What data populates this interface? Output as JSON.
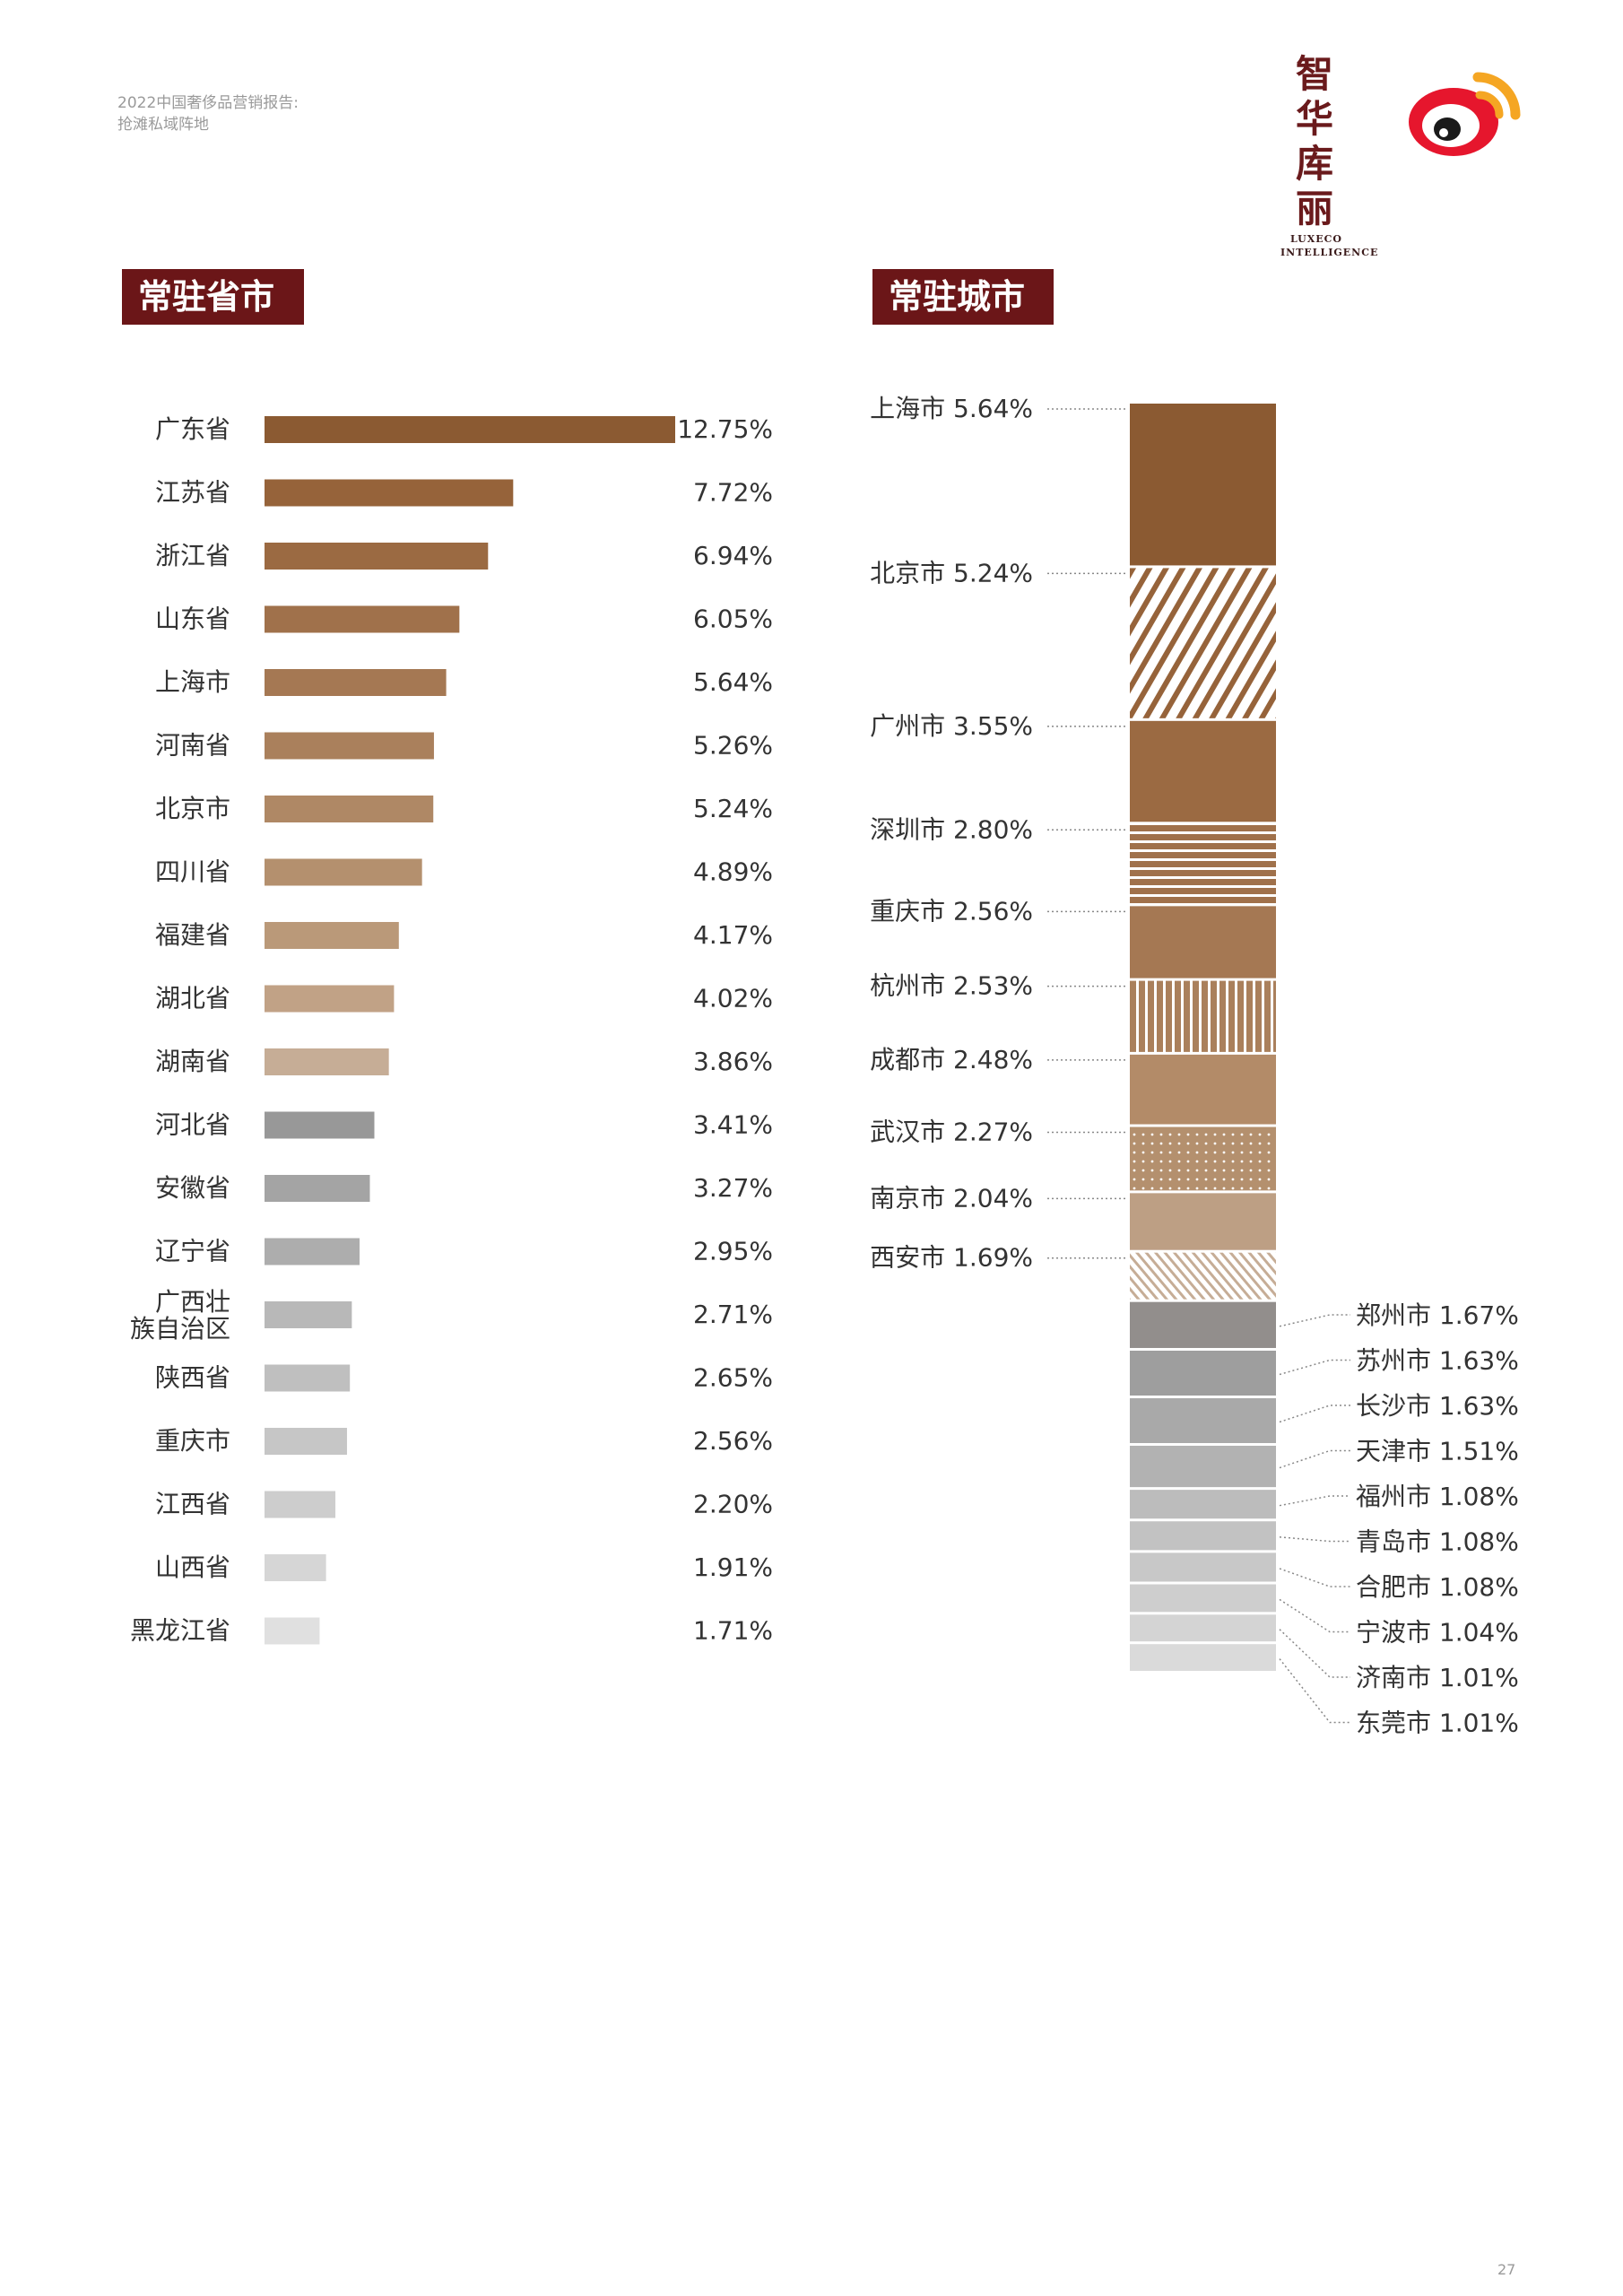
{
  "header": {
    "line1": "2022中国奢侈品营销报告:",
    "line2": "抢滩私域阵地"
  },
  "logo": {
    "cn_top": "智华",
    "cn_bottom": "库丽",
    "en_line1": "LUXECO",
    "en_line2": "INTELLIGENCE"
  },
  "page_number": "27",
  "colors": {
    "title_bg": "#6b1618",
    "weibo_red": "#e6162d",
    "weibo_orange": "#f5a623"
  },
  "chart_data": [
    {
      "type": "bar",
      "title": "常驻省市",
      "orientation": "horizontal",
      "categories": [
        "广东省",
        "江苏省",
        "浙江省",
        "山东省",
        "上海市",
        "河南省",
        "北京市",
        "四川省",
        "福建省",
        "湖北省",
        "湖南省",
        "河北省",
        "安徽省",
        "辽宁省",
        "广西壮族自治区",
        "陕西省",
        "重庆市",
        "江西省",
        "山西省",
        "黑龙江省"
      ],
      "values": [
        12.75,
        7.72,
        6.94,
        6.05,
        5.64,
        5.26,
        5.24,
        4.89,
        4.17,
        4.02,
        3.86,
        3.41,
        3.27,
        2.95,
        2.71,
        2.65,
        2.56,
        2.2,
        1.91,
        1.71
      ],
      "value_labels": [
        "12.75%",
        "7.72%",
        "6.94%",
        "6.05%",
        "5.64%",
        "5.26%",
        "5.24%",
        "4.89%",
        "4.17%",
        "4.02%",
        "3.86%",
        "3.41%",
        "3.27%",
        "2.95%",
        "2.71%",
        "2.65%",
        "2.56%",
        "2.20%",
        "1.91%",
        "1.71%"
      ],
      "colors": [
        "#8b5a32",
        "#96633a",
        "#9b6a42",
        "#a0714b",
        "#a57853",
        "#aa805c",
        "#af8865",
        "#b4906e",
        "#ba9979",
        "#c1a286",
        "#c6ad96",
        "#989898",
        "#a4a4a4",
        "#adadad",
        "#b8b8b8",
        "#bfbfbf",
        "#c6c6c6",
        "#cdcdcd",
        "#d6d6d6",
        "#e0e0e0"
      ],
      "ylim_note": "",
      "xlim": [
        0,
        12.75
      ]
    },
    {
      "type": "bar",
      "subtype": "stacked-single",
      "title": "常驻城市",
      "categories": [
        "上海市",
        "北京市",
        "广州市",
        "深圳市",
        "重庆市",
        "杭州市",
        "成都市",
        "武汉市",
        "南京市",
        "西安市",
        "郑州市",
        "苏州市",
        "长沙市",
        "天津市",
        "福州市",
        "青岛市",
        "合肥市",
        "宁波市",
        "济南市",
        "东莞市"
      ],
      "values": [
        5.64,
        5.24,
        3.55,
        2.8,
        2.56,
        2.53,
        2.48,
        2.27,
        2.04,
        1.69,
        1.67,
        1.63,
        1.63,
        1.51,
        1.08,
        1.08,
        1.08,
        1.04,
        1.01,
        1.01
      ],
      "value_labels": [
        "5.64%",
        "5.24%",
        "3.55%",
        "2.80%",
        "2.56%",
        "2.53%",
        "2.48%",
        "2.27%",
        "2.04%",
        "1.69%",
        "1.67%",
        "1.63%",
        "1.63%",
        "1.51%",
        "1.08%",
        "1.08%",
        "1.08%",
        "1.04%",
        "1.01%",
        "1.01%"
      ],
      "colors": [
        "#8b5a32",
        "#96633a",
        "#9b6a42",
        "#a0714b",
        "#a57853",
        "#aa805c",
        "#b38b68",
        "#b4906e",
        "#bd9f84",
        "#c6ad96",
        "#928e8c",
        "#9e9e9e",
        "#a9a9a9",
        "#b2b2b2",
        "#bcbcbc",
        "#c2c2c2",
        "#c8c8c8",
        "#cecece",
        "#d4d4d4",
        "#dadada"
      ],
      "patterns": [
        "solid",
        "diagonal",
        "solid",
        "horizontal",
        "solid",
        "vertical",
        "solid",
        "dots",
        "solid",
        "diagonal-fine",
        "solid",
        "solid",
        "solid",
        "solid",
        "solid",
        "solid",
        "solid",
        "solid",
        "solid",
        "solid"
      ],
      "label_side": [
        "left",
        "left",
        "left",
        "left",
        "left",
        "left",
        "left",
        "left",
        "left",
        "left",
        "right",
        "right",
        "right",
        "right",
        "right",
        "right",
        "right",
        "right",
        "right",
        "right"
      ]
    }
  ]
}
